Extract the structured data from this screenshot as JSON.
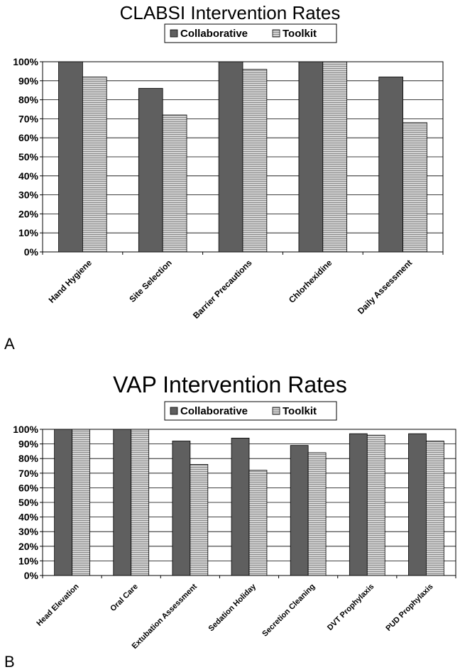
{
  "panels": [
    {
      "letter": "A",
      "chart_data": {
        "type": "bar",
        "title": "CLABSI Intervention Rates",
        "xlabel": "",
        "ylabel": "",
        "categories": [
          "Hand Hygiene",
          "Site Selection",
          "Barrier Precautions",
          "Chlorhexidine",
          "Daily Assessment"
        ],
        "series": [
          {
            "name": "Collaborative",
            "values": [
              100,
              86,
              100,
              100,
              92
            ]
          },
          {
            "name": "Toolkit",
            "values": [
              92,
              72,
              96,
              100,
              68
            ]
          }
        ],
        "ylim": [
          0,
          100
        ],
        "yticks": [
          "0%",
          "10%",
          "20%",
          "30%",
          "40%",
          "50%",
          "60%",
          "70%",
          "80%",
          "90%",
          "100%"
        ],
        "grid": true,
        "legend": "top-center"
      }
    },
    {
      "letter": "B",
      "chart_data": {
        "type": "bar",
        "title": "VAP Intervention Rates",
        "xlabel": "",
        "ylabel": "",
        "categories": [
          "Head Elevation",
          "Oral Care",
          "Extubation Assessment",
          "Sedation Holiday",
          "Secretion Cleaning",
          "DVT Prophylaxis",
          "PUD Prophylaxis"
        ],
        "series": [
          {
            "name": "Collaborative",
            "values": [
              100,
              100,
              92,
              94,
              89,
              97,
              97
            ]
          },
          {
            "name": "Toolkit",
            "values": [
              100,
              100,
              76,
              72,
              84,
              96,
              92
            ]
          }
        ],
        "ylim": [
          0,
          100
        ],
        "yticks": [
          "0%",
          "10%",
          "20%",
          "30%",
          "40%",
          "50%",
          "60%",
          "70%",
          "80%",
          "90%",
          "100%"
        ],
        "grid": true,
        "legend": "top-center"
      }
    }
  ],
  "colors": {
    "collaborative": "#5f5f5f",
    "toolkit_fill": "#d2d2d2",
    "toolkit_stripe": "#8a8a8a",
    "axis": "#000000"
  }
}
